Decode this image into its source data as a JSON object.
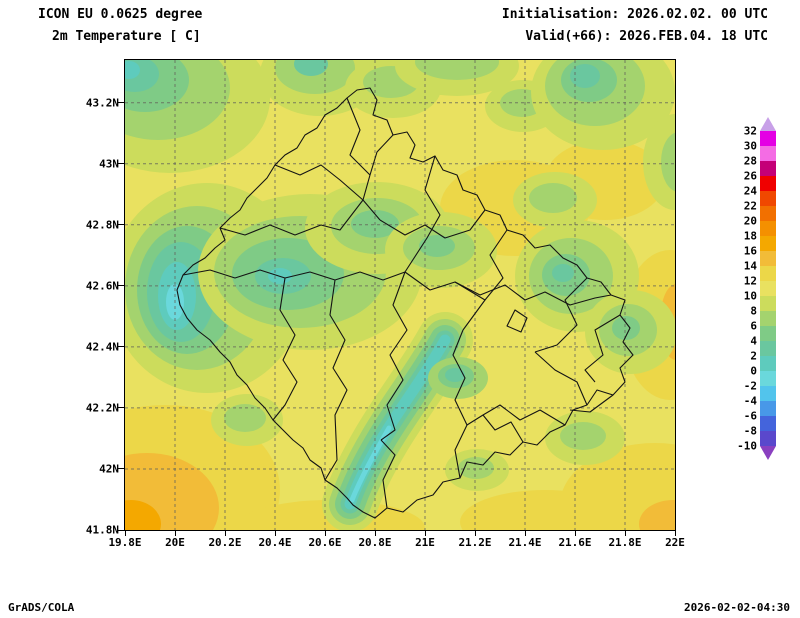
{
  "header": {
    "model": "ICON EU 0.0625 degree",
    "field": "2m Temperature [ C]",
    "init": "Initialisation: 2026.02.02. 00 UTC",
    "valid": "Valid(+66): 2026.FEB.04. 18 UTC"
  },
  "footer": {
    "credit": "GrADS/COLA",
    "timestamp": "2026-02-02-04:30"
  },
  "axes": {
    "lat_labels": [
      "43.2N",
      "43N",
      "42.8N",
      "42.6N",
      "42.4N",
      "42.2N",
      "42N",
      "41.8N"
    ],
    "lon_labels": [
      "19.8E",
      "20E",
      "20.2E",
      "20.4E",
      "20.6E",
      "20.8E",
      "21E",
      "21.2E",
      "21.4E",
      "21.6E",
      "21.8E",
      "22E"
    ]
  },
  "colorbar": {
    "tick_labels": [
      "32",
      "30",
      "28",
      "26",
      "24",
      "22",
      "20",
      "18",
      "16",
      "14",
      "12",
      "10",
      "8",
      "6",
      "4",
      "2",
      "0",
      "-2",
      "-4",
      "-6",
      "-8",
      "-10"
    ],
    "segment_colors": [
      "#e400e4",
      "#f46ce4",
      "#c40078",
      "#f00000",
      "#f04800",
      "#f27000",
      "#f49000",
      "#f4a800",
      "#f2bc38",
      "#ecd748",
      "#e9e160",
      "#ccdc5c",
      "#a4d36e",
      "#7fcb86",
      "#6ac79f",
      "#5ecbbd",
      "#6ad8dc",
      "#52c4ec",
      "#4898e8",
      "#4464dc",
      "#5a48cc"
    ],
    "arrow_top_color": "#c8a0e8",
    "arrow_bottom_color": "#8a40c0"
  },
  "chart_data": {
    "type": "heatmap",
    "title": "ICON EU 0.0625 degree — 2m Temperature [ C]",
    "region": "Kosovo with municipal boundaries",
    "lon_range_e": [
      19.8,
      22.0
    ],
    "lat_range_n": [
      41.8,
      43.34
    ],
    "grid_interval_deg": 0.2,
    "contour_interval_c": 2,
    "levels_c": [
      -10,
      -8,
      -6,
      -4,
      -2,
      0,
      2,
      4,
      6,
      8,
      10,
      12,
      14,
      16,
      18,
      20,
      22,
      24,
      26,
      28,
      30,
      32
    ],
    "dominant_band_c": [
      10,
      12
    ],
    "features": [
      {
        "value_band_c": [
          10,
          12
        ],
        "desc": "widespread yellow 10-12 C over most of the domain"
      },
      {
        "value_band_c": [
          4,
          8
        ],
        "desc": "green 4-8 C patches along the top edge, northwest corner, center-west and center-east"
      },
      {
        "value_band_c": [
          0,
          2
        ],
        "desc": "cyan cold pocket along the western border near 20.1E 42.6N"
      },
      {
        "value_band_c": [
          -2,
          2
        ],
        "desc": "cold cyan valley running from about 21E 42.4N southwest to the southern tip near 20.7E 41.9N"
      },
      {
        "value_band_c": [
          14,
          18
        ],
        "desc": "orange warm area in the southwest corner near 19.9E 41.9N and small warm spots at right edge and bottom-right corner"
      }
    ]
  }
}
